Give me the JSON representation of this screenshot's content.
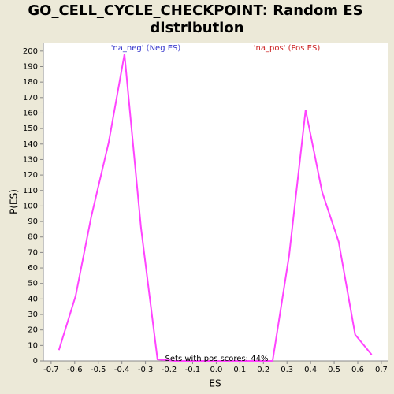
{
  "chart_data": {
    "type": "line",
    "title": [
      "GO_CELL_CYCLE_CHECKPOINT: Random ES",
      "distribution"
    ],
    "x_label": "ES",
    "y_label": "P(ES)",
    "x": [
      -0.667,
      -0.596,
      -0.53,
      -0.456,
      -0.389,
      -0.319,
      -0.249,
      -0.179,
      -0.109,
      -0.039,
      0.031,
      0.101,
      0.171,
      0.239,
      0.309,
      0.379,
      0.449,
      0.519,
      0.589,
      0.659
    ],
    "series": [
      {
        "color": "#ff44ff",
        "values": [
          7,
          42,
          93,
          141,
          198,
          86,
          1,
          0,
          0,
          0,
          0,
          0,
          0,
          0,
          68,
          162,
          109,
          77,
          17,
          4
        ]
      }
    ],
    "xlim": [
      -0.733,
      0.727
    ],
    "xticks": [
      -0.7,
      -0.6,
      -0.5,
      -0.4,
      -0.3,
      -0.2,
      -0.1,
      {
        "value": 0,
        "label": "0.0"
      },
      0.1,
      0.2,
      0.3,
      0.4,
      0.5,
      0.6,
      0.7
    ],
    "ylim": [
      0,
      205
    ],
    "yticks": [
      0,
      10,
      20,
      30,
      40,
      50,
      60,
      70,
      80,
      90,
      100,
      110,
      120,
      130,
      140,
      150,
      160,
      170,
      180,
      190,
      200
    ],
    "annotations": [
      {
        "text": "'na_neg' (Neg ES)",
        "color": "#3333cc"
      },
      {
        "text": "'na_pos' (Pos ES)",
        "color": "#cc2222"
      },
      {
        "text": "Sets with pos scores: 44%",
        "color": "#000000"
      }
    ]
  }
}
